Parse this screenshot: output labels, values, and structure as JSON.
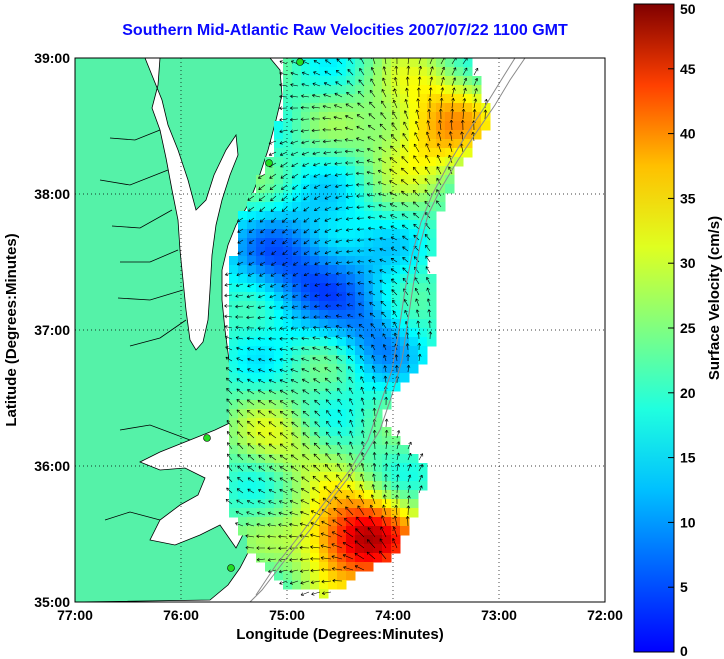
{
  "title": "Southern Mid-Atlantic Raw Velocities 2007/07/22 1100 GMT",
  "map": {
    "x_label": "Longitude (Degrees:Minutes)",
    "y_label": "Latitude (Degrees:Minutes)",
    "x_ticks": [
      "77:00",
      "76:00",
      "75:00",
      "74:00",
      "73:00",
      "72:00"
    ],
    "y_ticks": [
      "39:00",
      "38:00",
      "37:00",
      "36:00",
      "35:00"
    ],
    "lon_range": [
      -77,
      -72
    ],
    "lat_range": [
      35,
      39
    ],
    "grid": "dotted",
    "land_color": "#55f2a8",
    "coast_color": "#000000",
    "station_color": "#22dd22"
  },
  "colorbar": {
    "label": "Surface Velocity (cm/s)",
    "ticks": [
      "0",
      "5",
      "10",
      "15",
      "20",
      "25",
      "30",
      "35",
      "40",
      "45",
      "50"
    ],
    "range": [
      0,
      50
    ],
    "colormap": "jet"
  },
  "chart_data": {
    "type": "heatmap",
    "title": "Southern Mid-Atlantic Raw Velocities 2007/07/22 1100 GMT",
    "xlabel": "Longitude (Degrees:Minutes)",
    "ylabel": "Latitude (Degrees:Minutes)",
    "xlim": [
      -77,
      -72
    ],
    "ylim": [
      35,
      39
    ],
    "value_label": "Surface Velocity (cm/s)",
    "value_range": [
      0,
      50
    ]
  }
}
